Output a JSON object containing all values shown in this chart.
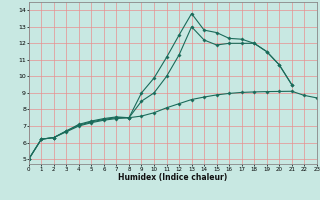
{
  "xlabel": "Humidex (Indice chaleur)",
  "xlim": [
    0,
    23
  ],
  "ylim": [
    4.7,
    14.5
  ],
  "xticks": [
    0,
    1,
    2,
    3,
    4,
    5,
    6,
    7,
    8,
    9,
    10,
    11,
    12,
    13,
    14,
    15,
    16,
    17,
    18,
    19,
    20,
    21,
    22,
    23
  ],
  "yticks": [
    5,
    6,
    7,
    8,
    9,
    10,
    11,
    12,
    13,
    14
  ],
  "bg_color": "#c8e8e2",
  "line_color": "#1a6b5a",
  "grid_color": "#e89090",
  "series": [
    {
      "x": [
        0,
        1,
        2,
        3,
        4,
        5,
        6,
        7,
        8,
        9,
        10,
        11,
        12,
        13,
        14,
        15,
        16,
        17,
        18,
        19,
        20,
        21
      ],
      "y": [
        5.0,
        6.2,
        6.3,
        6.7,
        7.1,
        7.3,
        7.45,
        7.55,
        7.5,
        9.0,
        9.9,
        11.15,
        12.5,
        13.8,
        12.8,
        12.65,
        12.3,
        12.25,
        12.0,
        11.5,
        10.7,
        9.5
      ]
    },
    {
      "x": [
        0,
        1,
        2,
        3,
        4,
        5,
        6,
        7,
        8,
        9,
        10,
        11,
        12,
        13,
        14,
        15,
        16,
        17,
        18,
        19,
        20,
        21
      ],
      "y": [
        5.0,
        6.2,
        6.3,
        6.7,
        7.05,
        7.25,
        7.4,
        7.5,
        7.5,
        8.5,
        9.0,
        10.0,
        11.3,
        13.0,
        12.2,
        11.9,
        12.0,
        12.0,
        12.0,
        11.5,
        10.7,
        9.5
      ]
    },
    {
      "x": [
        0,
        1,
        2,
        3,
        4,
        5,
        6,
        7,
        8,
        9,
        10,
        11,
        12,
        13,
        14,
        15,
        16,
        17,
        18,
        19,
        20,
        21,
        22,
        23
      ],
      "y": [
        5.0,
        6.2,
        6.3,
        6.65,
        7.0,
        7.2,
        7.35,
        7.45,
        7.5,
        7.6,
        7.8,
        8.1,
        8.35,
        8.6,
        8.75,
        8.88,
        8.97,
        9.03,
        9.06,
        9.08,
        9.09,
        9.1,
        8.85,
        8.7
      ]
    }
  ]
}
